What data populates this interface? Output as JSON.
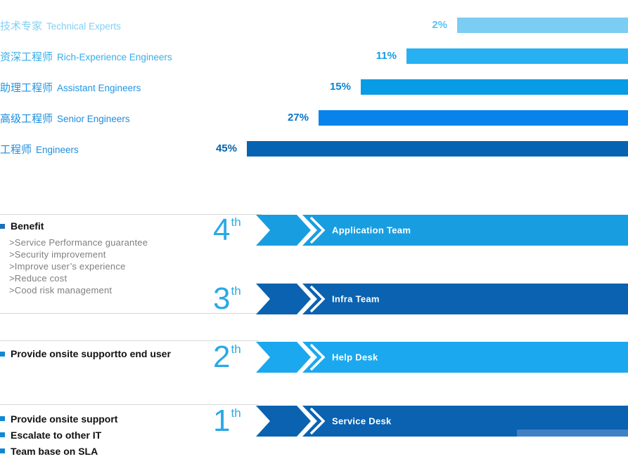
{
  "chart_data": {
    "type": "bar",
    "orientation": "horizontal",
    "layout_hint": "bars right-aligned to canvas edge, no axes, no grid",
    "categories_zh": [
      "技术专家",
      "资深工程师",
      "助理工程师",
      "高级工程师",
      "工程师"
    ],
    "categories_en": [
      "Technical Experts",
      "Rich-Experience Engineers",
      "Assistant Engineers",
      "Senior Engineers",
      "Engineers"
    ],
    "values": [
      2,
      11,
      15,
      27,
      45
    ],
    "value_labels": [
      "2%",
      "11%",
      "15%",
      "27%",
      "45%"
    ],
    "bar_colors": [
      "#7ccdf3",
      "#27b1f3",
      "#079ce5",
      "#0883ec",
      "#0563b1"
    ],
    "category_label_colors": [
      "#80d0f5",
      "#35aeea",
      "#2196e4",
      "#1d8ede",
      "#1d8ede"
    ],
    "value_label_colors": [
      "#58c4f1",
      "#1a9ae4",
      "#0b85d2",
      "#0874c8",
      "#0562ac"
    ]
  },
  "tiers": [
    {
      "number": "4",
      "suffix": "th",
      "team": "Application Team",
      "color": "#189ee0"
    },
    {
      "number": "3",
      "suffix": "th",
      "team": "Infra Team",
      "color": "#0a62b0"
    },
    {
      "number": "2",
      "suffix": "th",
      "team": "Help Desk",
      "color": "#1ba8ee"
    },
    {
      "number": "1",
      "suffix": "th",
      "team": "Service Desk",
      "color": "#0a62b0"
    }
  ],
  "benefit": {
    "title": "Benefit",
    "bullet_color": "#1d70b8",
    "items": [
      ">Service Performance guarantee",
      ">Security improvement",
      ">Improve user’s experience",
      ">Reduce cost",
      ">Cood risk management"
    ]
  },
  "notes": {
    "bullet_color": "#1188d4",
    "tier2": "Provide onsite supportto end user",
    "tier1": [
      "Provide onsite support",
      "Escalate to other IT",
      "Team base on SLA"
    ]
  },
  "colors": {
    "tier_number": "#2aa9e5",
    "divider": "#d8d8d8",
    "tier_text": "#ffffff",
    "service_strip": "#3e81c4"
  }
}
